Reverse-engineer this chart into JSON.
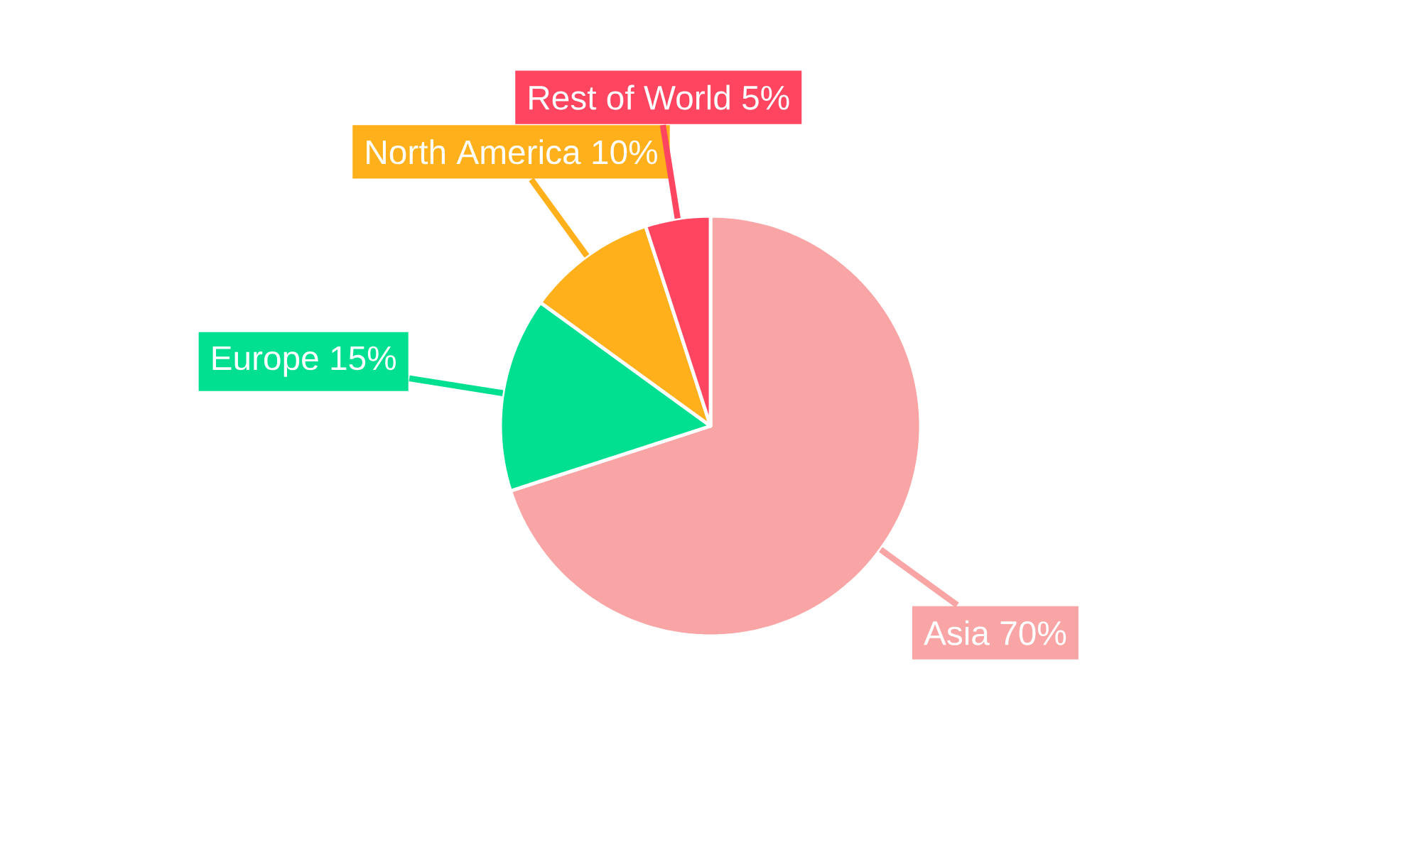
{
  "chart_data": {
    "type": "pie",
    "categories": [
      "Asia",
      "Europe",
      "North America",
      "Rest of World"
    ],
    "values": [
      70,
      15,
      10,
      5
    ],
    "value_labels": [
      "70%",
      "15%",
      "10%",
      "5%"
    ],
    "colors": [
      "#f9a5a5",
      "#00e090",
      "#ffb01a",
      "#ff4560"
    ]
  }
}
